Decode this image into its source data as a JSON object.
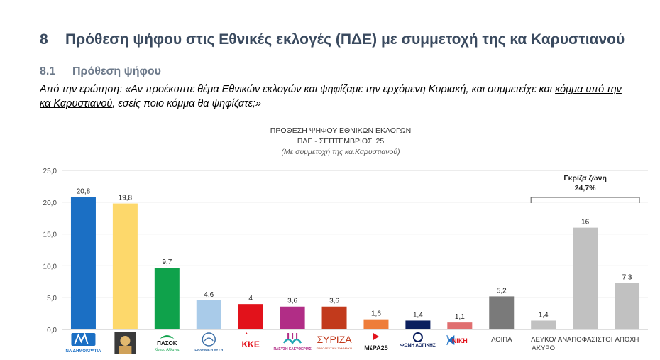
{
  "heading": {
    "number": "8",
    "text": "Πρόθεση ψήφου στις Εθνικές εκλογές (ΠΔΕ) με συμμετοχή της κα Καρυστιανού"
  },
  "subheading": {
    "number": "8.1",
    "text": "Πρόθεση ψήφου"
  },
  "question": {
    "prefix": "Από την ερώτηση: «Αν προέκυπτε θέμα Εθνικών εκλογών και ψηφίζαμε την ερχόμενη Κυριακή, και συμμετείχε και ",
    "underlined": "κόμμα υπό την κα Καρυστιανού",
    "suffix": ", εσείς ποιο κόμμα θα ψηφίζατε;»"
  },
  "chart_data": {
    "type": "bar",
    "title": "ΠΡΟΘΕΣΗ ΨΗΦΟΥ  ΕΘΝΙΚΩΝ ΕΚΛΟΓΩΝ",
    "subtitle": "ΠΔΕ - ΣΕΠΤΕΜΒΡΙΟΣ '25",
    "note": "(Με συμμετοχή της κα.Καρυστιανού)",
    "ylim": [
      0,
      25
    ],
    "yticks": [
      "0,0",
      "5,0",
      "10,0",
      "15,0",
      "20,0",
      "25,0"
    ],
    "grid": true,
    "categories": [
      {
        "label": "ΝΑ ΔΗΜΟΚΡΑΤΙΑ",
        "logo": "nd-logo",
        "value": 20.8,
        "value_label": "20,8",
        "color": "#1b6fc4"
      },
      {
        "label": "",
        "logo": "karystianou-photo",
        "value": 19.8,
        "value_label": "19,8",
        "color": "#fdd86b"
      },
      {
        "label": "ΠΑΣΟΚ",
        "logo": "pasok-logo",
        "value": 9.7,
        "value_label": "9,7",
        "color": "#0fa24b"
      },
      {
        "label": "ΕΛΛΗΝΙΚΗ ΛΥΣΗ",
        "logo": "elliniki-lysi-logo",
        "value": 4.6,
        "value_label": "4,6",
        "color": "#a9cbe9"
      },
      {
        "label": "ΚΚΕ",
        "logo": "kke-logo",
        "value": 4,
        "value_label": "4",
        "color": "#e2121b"
      },
      {
        "label": "ΠΛΕΥΣΗ ΕΛΕΥΘΕΡΙΑΣ",
        "logo": "plefsi-logo",
        "value": 3.6,
        "value_label": "3,6",
        "color": "#b12d86"
      },
      {
        "label": "ΣΥΡΙΖΑ",
        "logo": "syriza-logo",
        "value": 3.6,
        "value_label": "3,6",
        "color": "#c23a1c"
      },
      {
        "label": "ΜέΡΑ25",
        "logo": "mera25-logo",
        "value": 1.6,
        "value_label": "1,6",
        "color": "#ee7d3a"
      },
      {
        "label": "ΦΩΝΗ ΛΟΓΙΚΗΣ",
        "logo": "foni-logikis-logo",
        "value": 1.4,
        "value_label": "1,4",
        "color": "#0b1f5e"
      },
      {
        "label": "ΝΙΚΗ",
        "logo": "niki-logo",
        "value": 1.1,
        "value_label": "1,1",
        "color": "#e06f70"
      },
      {
        "label": "ΛΟΙΠΑ",
        "logo": "",
        "value": 5.2,
        "value_label": "5,2",
        "color": "#7a7a7a"
      },
      {
        "label": "ΛΕΥΚΟ/ ΑΚΥΡΟ",
        "logo": "",
        "value": 1.4,
        "value_label": "1,4",
        "color": "#c1c1c1"
      },
      {
        "label": "ΑΝΑΠΟΦΑΣΙΣΤΟΙ",
        "logo": "",
        "value": 16,
        "value_label": "16",
        "color": "#c1c1c1"
      },
      {
        "label": "ΑΠΟΧΗ",
        "logo": "",
        "value": 7.3,
        "value_label": "7,3",
        "color": "#c1c1c1"
      }
    ],
    "annotation": {
      "title": "Γκρίζα ζώνη",
      "value": "24,7%",
      "from_index": 11,
      "to_index": 13
    }
  }
}
